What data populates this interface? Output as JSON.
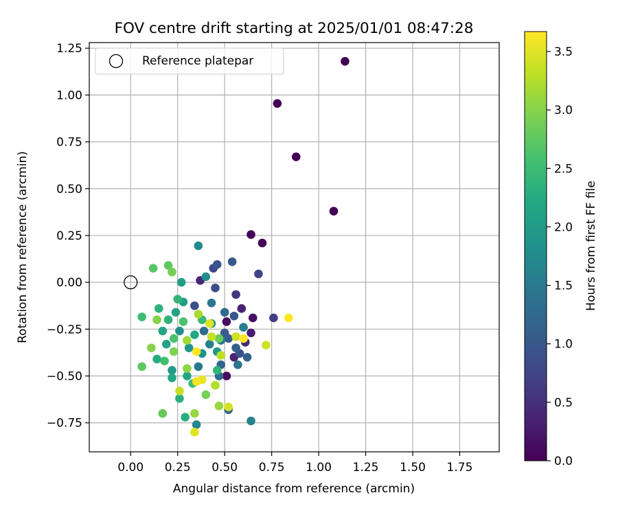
{
  "chart_data": {
    "type": "scatter",
    "title": "FOV centre drift starting at 2025/01/01 08:47:28",
    "xlabel": "Angular distance from reference (arcmin)",
    "ylabel": "Rotation from reference (arcmin)",
    "xlim": [
      -0.22,
      1.96
    ],
    "ylim": [
      -0.905,
      1.28
    ],
    "xticks": [
      0.0,
      0.25,
      0.5,
      0.75,
      1.0,
      1.25,
      1.5,
      1.75
    ],
    "xtick_labels": [
      "0.00",
      "0.25",
      "0.50",
      "0.75",
      "1.00",
      "1.25",
      "1.50",
      "1.75"
    ],
    "yticks": [
      -0.75,
      -0.5,
      -0.25,
      0.0,
      0.25,
      0.5,
      0.75,
      1.0,
      1.25
    ],
    "ytick_labels": [
      "−0.75",
      "−0.50",
      "−0.25",
      "0.00",
      "0.25",
      "0.50",
      "0.75",
      "1.00",
      "1.25"
    ],
    "grid": true,
    "legend": {
      "placement": "top-left",
      "entries": [
        "Reference platepar"
      ]
    },
    "reference_point": {
      "x": 0.0,
      "y": 0.0,
      "label": "Reference platepar"
    },
    "colorbar": {
      "label": "Hours from first FF file",
      "colormap": "viridis",
      "range": [
        0.0,
        3.67
      ],
      "ticks": [
        0.0,
        0.5,
        1.0,
        1.5,
        2.0,
        2.5,
        3.0,
        3.5
      ],
      "tick_labels": [
        "0.0",
        "0.5",
        "1.0",
        "1.5",
        "2.0",
        "2.5",
        "3.0",
        "3.5"
      ]
    },
    "colors": {
      "viridis": [
        "#440154",
        "#482475",
        "#414487",
        "#355f8d",
        "#2a788e",
        "#21918c",
        "#22a884",
        "#44bf70",
        "#7ad151",
        "#bddf26",
        "#fde725"
      ]
    },
    "points": [
      {
        "x": 1.14,
        "y": 1.18,
        "h": 0.0
      },
      {
        "x": 0.78,
        "y": 0.955,
        "h": 0.0
      },
      {
        "x": 0.88,
        "y": 0.67,
        "h": 0.0
      },
      {
        "x": 1.08,
        "y": 0.38,
        "h": 0.0
      },
      {
        "x": 0.64,
        "y": 0.255,
        "h": 0.03
      },
      {
        "x": 0.7,
        "y": 0.21,
        "h": 0.05
      },
      {
        "x": 0.51,
        "y": -0.21,
        "h": 0.1
      },
      {
        "x": 0.65,
        "y": -0.19,
        "h": 0.15
      },
      {
        "x": 0.51,
        "y": -0.5,
        "h": 0.12
      },
      {
        "x": 0.64,
        "y": -0.27,
        "h": 0.3
      },
      {
        "x": 0.59,
        "y": -0.14,
        "h": 0.35
      },
      {
        "x": 0.55,
        "y": -0.4,
        "h": 0.35
      },
      {
        "x": 0.37,
        "y": 0.01,
        "h": 0.4
      },
      {
        "x": 0.61,
        "y": -0.32,
        "h": 0.45
      },
      {
        "x": 0.56,
        "y": -0.065,
        "h": 0.6
      },
      {
        "x": 0.76,
        "y": -0.19,
        "h": 0.65
      },
      {
        "x": 0.68,
        "y": 0.045,
        "h": 0.75
      },
      {
        "x": 0.44,
        "y": 0.075,
        "h": 0.8
      },
      {
        "x": 0.45,
        "y": -0.03,
        "h": 0.85
      },
      {
        "x": 0.58,
        "y": -0.38,
        "h": 0.9
      },
      {
        "x": 0.34,
        "y": -0.125,
        "h": 0.9
      },
      {
        "x": 0.46,
        "y": 0.095,
        "h": 0.95
      },
      {
        "x": 0.54,
        "y": 0.11,
        "h": 1.0
      },
      {
        "x": 0.55,
        "y": -0.18,
        "h": 1.0
      },
      {
        "x": 0.5,
        "y": -0.27,
        "h": 1.05
      },
      {
        "x": 0.52,
        "y": -0.3,
        "h": 1.1
      },
      {
        "x": 0.56,
        "y": -0.35,
        "h": 1.1
      },
      {
        "x": 0.62,
        "y": -0.4,
        "h": 1.15
      },
      {
        "x": 0.52,
        "y": -0.68,
        "h": 1.2
      },
      {
        "x": 0.48,
        "y": -0.44,
        "h": 1.2
      },
      {
        "x": 0.5,
        "y": -0.16,
        "h": 1.25
      },
      {
        "x": 0.39,
        "y": -0.26,
        "h": 1.3
      },
      {
        "x": 0.47,
        "y": -0.5,
        "h": 1.3
      },
      {
        "x": 0.57,
        "y": -0.44,
        "h": 1.4
      },
      {
        "x": 0.43,
        "y": -0.11,
        "h": 1.45
      },
      {
        "x": 0.36,
        "y": -0.45,
        "h": 1.5
      },
      {
        "x": 0.48,
        "y": -0.31,
        "h": 1.5
      },
      {
        "x": 0.6,
        "y": -0.24,
        "h": 1.55
      },
      {
        "x": 0.64,
        "y": -0.74,
        "h": 1.6
      },
      {
        "x": 0.42,
        "y": -0.33,
        "h": 1.6
      },
      {
        "x": 0.35,
        "y": -0.76,
        "h": 1.7
      },
      {
        "x": 0.36,
        "y": 0.195,
        "h": 1.75
      },
      {
        "x": 0.4,
        "y": 0.03,
        "h": 1.8
      },
      {
        "x": 0.26,
        "y": -0.26,
        "h": 1.8
      },
      {
        "x": 0.38,
        "y": -0.38,
        "h": 1.85
      },
      {
        "x": 0.43,
        "y": -0.22,
        "h": 1.9
      },
      {
        "x": 0.31,
        "y": -0.35,
        "h": 1.9
      },
      {
        "x": 0.46,
        "y": -0.37,
        "h": 1.95
      },
      {
        "x": 0.22,
        "y": -0.47,
        "h": 2.0
      },
      {
        "x": 0.27,
        "y": 0.0,
        "h": 2.05
      },
      {
        "x": 0.28,
        "y": -0.105,
        "h": 2.05
      },
      {
        "x": 0.19,
        "y": -0.33,
        "h": 2.1
      },
      {
        "x": 0.24,
        "y": -0.16,
        "h": 2.1
      },
      {
        "x": 0.3,
        "y": -0.5,
        "h": 2.15
      },
      {
        "x": 0.17,
        "y": -0.26,
        "h": 2.15
      },
      {
        "x": 0.34,
        "y": -0.28,
        "h": 2.2
      },
      {
        "x": 0.22,
        "y": -0.51,
        "h": 2.2
      },
      {
        "x": 0.14,
        "y": -0.41,
        "h": 2.25
      },
      {
        "x": 0.26,
        "y": -0.62,
        "h": 2.3
      },
      {
        "x": 0.29,
        "y": -0.72,
        "h": 2.3
      },
      {
        "x": 0.15,
        "y": -0.14,
        "h": 2.35
      },
      {
        "x": 0.2,
        "y": -0.2,
        "h": 2.35
      },
      {
        "x": 0.25,
        "y": -0.09,
        "h": 2.4
      },
      {
        "x": 0.46,
        "y": -0.47,
        "h": 2.4
      },
      {
        "x": 0.38,
        "y": -0.2,
        "h": 2.45
      },
      {
        "x": 0.33,
        "y": -0.54,
        "h": 2.5
      },
      {
        "x": 0.06,
        "y": -0.185,
        "h": 2.5
      },
      {
        "x": 0.18,
        "y": -0.42,
        "h": 2.55
      },
      {
        "x": 0.23,
        "y": -0.3,
        "h": 2.6
      },
      {
        "x": 0.28,
        "y": -0.21,
        "h": 2.6
      },
      {
        "x": 0.12,
        "y": 0.075,
        "h": 2.7
      },
      {
        "x": 0.2,
        "y": 0.09,
        "h": 2.75
      },
      {
        "x": 0.06,
        "y": -0.45,
        "h": 2.75
      },
      {
        "x": 0.17,
        "y": -0.7,
        "h": 2.8
      },
      {
        "x": 0.47,
        "y": -0.3,
        "h": 2.85
      },
      {
        "x": 0.4,
        "y": -0.6,
        "h": 2.9
      },
      {
        "x": 0.22,
        "y": 0.055,
        "h": 2.9
      },
      {
        "x": 0.23,
        "y": -0.37,
        "h": 2.95
      },
      {
        "x": 0.14,
        "y": -0.2,
        "h": 3.0
      },
      {
        "x": 0.11,
        "y": -0.35,
        "h": 3.0
      },
      {
        "x": 0.3,
        "y": -0.46,
        "h": 3.05
      },
      {
        "x": 0.34,
        "y": -0.7,
        "h": 3.1
      },
      {
        "x": 0.47,
        "y": -0.66,
        "h": 3.1
      },
      {
        "x": 0.3,
        "y": -0.31,
        "h": 3.15
      },
      {
        "x": 0.36,
        "y": -0.17,
        "h": 3.2
      },
      {
        "x": 0.45,
        "y": -0.55,
        "h": 3.25
      },
      {
        "x": 0.48,
        "y": -0.39,
        "h": 3.3
      },
      {
        "x": 0.26,
        "y": -0.58,
        "h": 3.35
      },
      {
        "x": 0.43,
        "y": -0.29,
        "h": 3.35
      },
      {
        "x": 0.56,
        "y": -0.29,
        "h": 3.4
      },
      {
        "x": 0.72,
        "y": -0.335,
        "h": 3.4
      },
      {
        "x": 0.52,
        "y": -0.665,
        "h": 3.45
      },
      {
        "x": 0.34,
        "y": -0.8,
        "h": 3.5
      },
      {
        "x": 0.42,
        "y": -0.22,
        "h": 3.5
      },
      {
        "x": 0.38,
        "y": -0.52,
        "h": 3.55
      },
      {
        "x": 0.35,
        "y": -0.53,
        "h": 3.6
      },
      {
        "x": 0.6,
        "y": -0.3,
        "h": 3.65
      },
      {
        "x": 0.84,
        "y": -0.19,
        "h": 3.67
      },
      {
        "x": 0.35,
        "y": -0.37,
        "h": 3.67
      }
    ]
  }
}
